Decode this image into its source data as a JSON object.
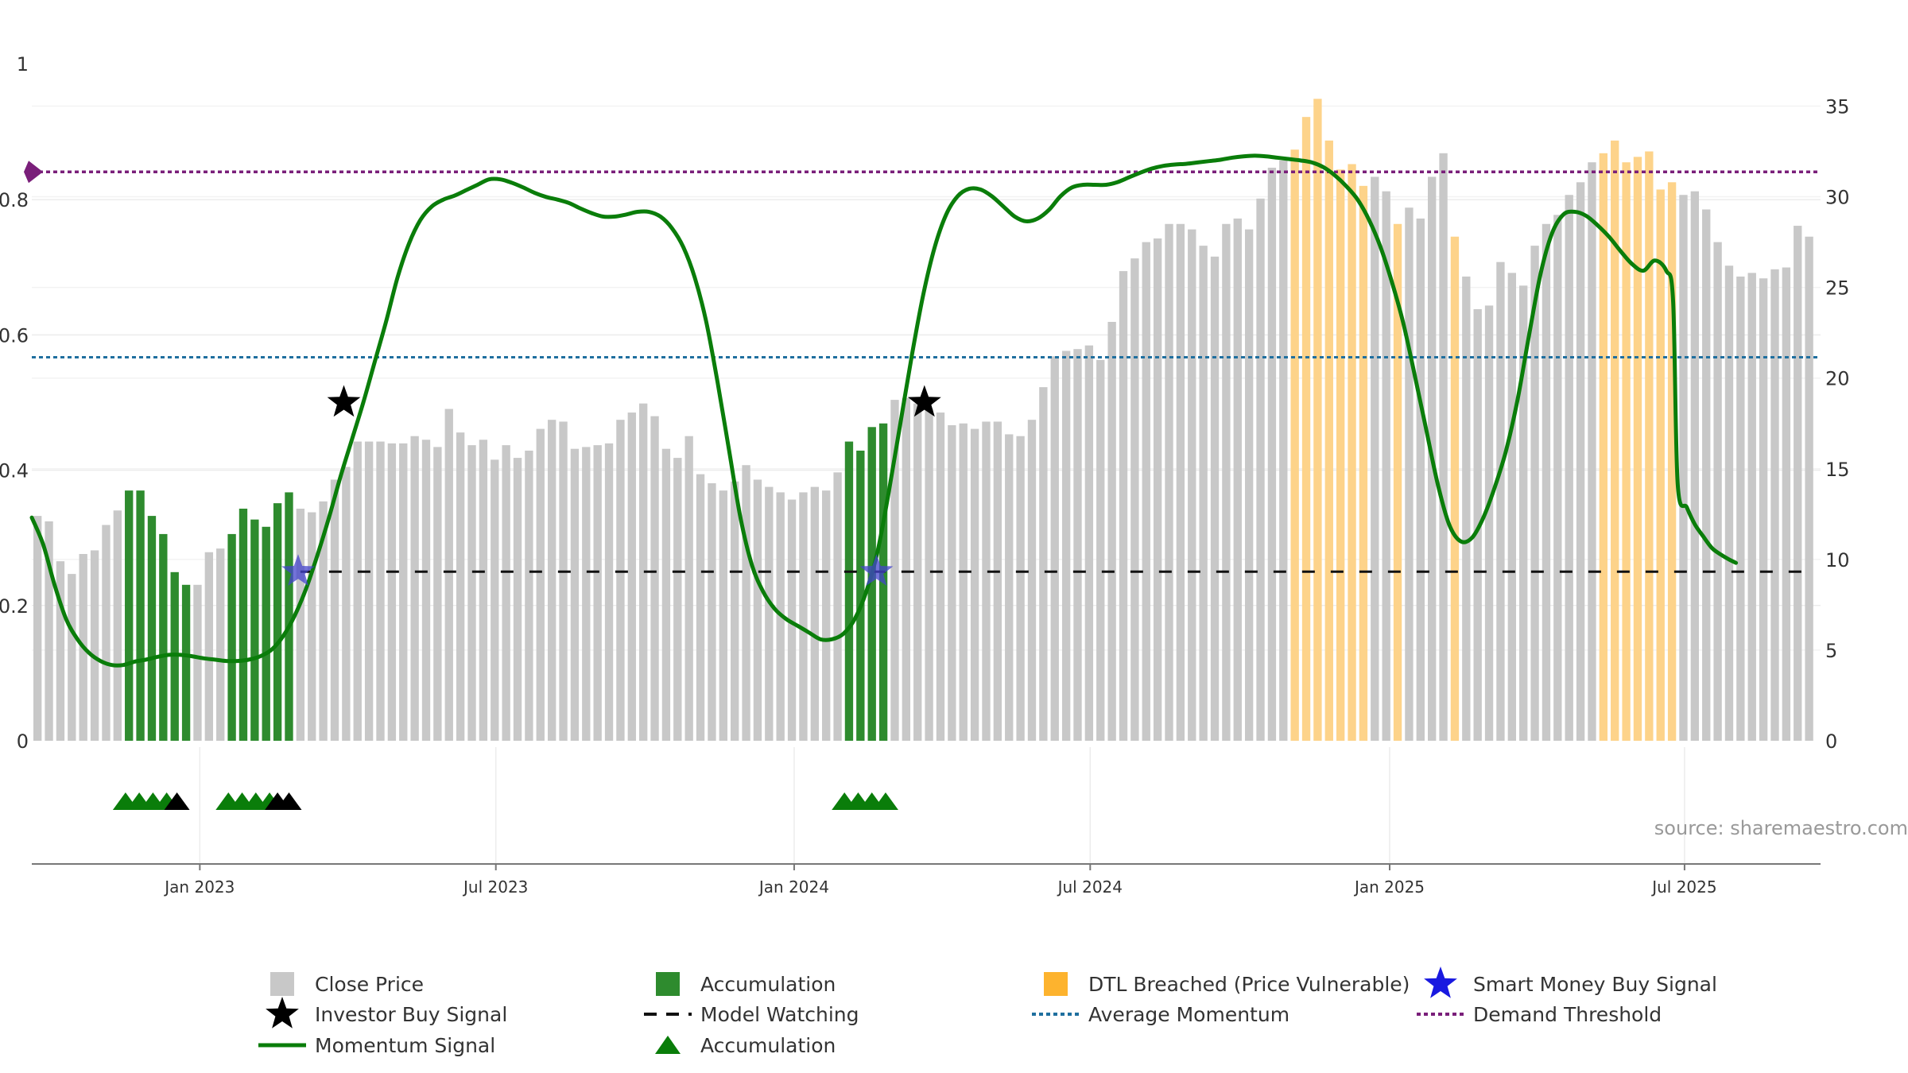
{
  "chart_data": {
    "type": "bar",
    "source_label": "source: sharemaestro.com",
    "colors": {
      "close_price": "#c8c8c8",
      "accumulation": "#2e8b2e",
      "dtl": "#fdd38a",
      "momentum": "#0a7d0a",
      "model_watching": "#111111",
      "average_momentum": "#1f6f9f",
      "demand_threshold": "#7a1f7a",
      "investor_star": "#000000",
      "smart_star": "#4444cc",
      "triangle_acc": "#0a7d0a",
      "triangle_inv": "#000000"
    },
    "left_axis": {
      "range": [
        0,
        1
      ],
      "ticks": [
        "0",
        "0.2",
        "0.4",
        "0.6",
        "0.8",
        "1"
      ]
    },
    "right_axis": {
      "range": [
        0,
        37.3
      ],
      "ticks": [
        "0",
        "5",
        "10",
        "15",
        "20",
        "25",
        "30",
        "35"
      ]
    },
    "x_axis": {
      "range_weeks": [
        0,
        156.5
      ],
      "ticks": [
        {
          "label": "Jan 2023",
          "week": 14.7
        },
        {
          "label": "Jul 2023",
          "week": 40.6
        },
        {
          "label": "Jan 2024",
          "week": 66.7
        },
        {
          "label": "Jul 2024",
          "week": 92.6
        },
        {
          "label": "Jan 2025",
          "week": 118.8
        },
        {
          "label": "Jul 2025",
          "week": 144.6
        }
      ]
    },
    "close_price_series": {
      "name": "Close Price",
      "values": [
        12.4,
        12.1,
        9.9,
        9.2,
        10.3,
        10.5,
        11.9,
        12.7,
        13.8,
        13.8,
        12.4,
        11.4,
        9.3,
        8.6,
        8.6,
        10.4,
        10.6,
        11.4,
        12.8,
        12.2,
        11.8,
        13.1,
        13.7,
        12.8,
        12.6,
        13.2,
        14.4,
        15.1,
        16.5,
        16.5,
        16.5,
        16.4,
        16.4,
        16.8,
        16.6,
        16.2,
        18.3,
        17.0,
        16.3,
        16.6,
        15.5,
        16.3,
        15.6,
        16.0,
        17.2,
        17.7,
        17.6,
        16.1,
        16.2,
        16.3,
        16.4,
        17.7,
        18.1,
        18.6,
        17.9,
        16.1,
        15.6,
        16.8,
        14.7,
        14.2,
        13.8,
        14.3,
        15.2,
        14.4,
        14.0,
        13.7,
        13.3,
        13.7,
        14.0,
        13.8,
        14.8,
        16.5,
        16.0,
        17.3,
        17.5,
        18.8,
        18.9,
        18.6,
        18.3,
        18.1,
        17.4,
        17.5,
        17.2,
        17.6,
        17.6,
        16.9,
        16.8,
        17.7,
        19.5,
        21.2,
        21.5,
        21.6,
        21.8,
        21.0,
        23.1,
        25.9,
        26.6,
        27.5,
        27.7,
        28.5,
        28.5,
        28.2,
        27.3,
        26.7,
        28.5,
        28.8,
        28.2,
        29.9,
        31.6,
        32.0,
        32.6,
        34.4,
        35.4,
        33.1,
        31.5,
        31.8,
        30.6,
        31.1,
        30.3,
        28.5,
        29.4,
        28.8,
        31.1,
        32.4,
        27.8,
        25.6,
        23.8,
        24.0,
        26.4,
        25.8,
        25.1,
        27.3,
        28.5,
        29.0,
        30.1,
        30.8,
        31.9,
        32.4,
        33.1,
        31.9,
        32.2,
        32.5,
        30.4,
        30.8,
        30.1,
        30.3,
        29.3,
        27.5,
        26.2,
        25.6,
        25.8,
        25.5,
        26.0,
        26.1,
        28.4,
        27.8
      ],
      "accumulation_weeks": [
        8,
        9,
        10,
        11,
        12,
        13,
        17,
        18,
        19,
        20,
        21,
        22,
        71,
        72,
        73,
        74
      ],
      "dtl_weeks": [
        110,
        111,
        112,
        113,
        114,
        115,
        116,
        119,
        124,
        137,
        138,
        139,
        140,
        141,
        142,
        143
      ]
    },
    "momentum_series": {
      "name": "Momentum Signal",
      "points": [
        [
          0,
          0.33
        ],
        [
          1,
          0.29
        ],
        [
          2,
          0.23
        ],
        [
          3,
          0.18
        ],
        [
          4,
          0.15
        ],
        [
          5,
          0.13
        ],
        [
          6,
          0.118
        ],
        [
          7,
          0.112
        ],
        [
          8,
          0.112
        ],
        [
          9,
          0.117
        ],
        [
          10,
          0.12
        ],
        [
          11,
          0.124
        ],
        [
          12,
          0.127
        ],
        [
          13,
          0.127
        ],
        [
          14,
          0.125
        ],
        [
          15,
          0.122
        ],
        [
          16,
          0.12
        ],
        [
          17,
          0.118
        ],
        [
          18,
          0.118
        ],
        [
          19,
          0.12
        ],
        [
          20,
          0.125
        ],
        [
          21,
          0.135
        ],
        [
          22,
          0.155
        ],
        [
          23,
          0.185
        ],
        [
          24,
          0.225
        ],
        [
          25,
          0.275
        ],
        [
          26,
          0.33
        ],
        [
          27,
          0.39
        ],
        [
          28,
          0.445
        ],
        [
          29,
          0.5
        ],
        [
          30,
          0.56
        ],
        [
          31,
          0.62
        ],
        [
          32,
          0.685
        ],
        [
          33,
          0.735
        ],
        [
          34,
          0.77
        ],
        [
          35,
          0.79
        ],
        [
          36,
          0.8
        ],
        [
          37,
          0.806
        ],
        [
          38,
          0.814
        ],
        [
          39,
          0.822
        ],
        [
          40,
          0.83
        ],
        [
          41,
          0.83
        ],
        [
          42,
          0.825
        ],
        [
          43,
          0.818
        ],
        [
          44,
          0.81
        ],
        [
          45,
          0.804
        ],
        [
          46,
          0.8
        ],
        [
          47,
          0.795
        ],
        [
          48,
          0.787
        ],
        [
          49,
          0.78
        ],
        [
          50,
          0.775
        ],
        [
          51,
          0.775
        ],
        [
          52,
          0.778
        ],
        [
          53,
          0.782
        ],
        [
          54,
          0.782
        ],
        [
          55,
          0.775
        ],
        [
          56,
          0.758
        ],
        [
          57,
          0.73
        ],
        [
          58,
          0.685
        ],
        [
          59,
          0.62
        ],
        [
          60,
          0.53
        ],
        [
          61,
          0.43
        ],
        [
          62,
          0.33
        ],
        [
          63,
          0.26
        ],
        [
          64,
          0.22
        ],
        [
          65,
          0.195
        ],
        [
          66,
          0.18
        ],
        [
          67,
          0.17
        ],
        [
          68,
          0.16
        ],
        [
          69,
          0.15
        ],
        [
          70,
          0.15
        ],
        [
          71,
          0.158
        ],
        [
          72,
          0.18
        ],
        [
          73,
          0.22
        ],
        [
          74,
          0.28
        ],
        [
          75,
          0.37
        ],
        [
          76,
          0.47
        ],
        [
          77,
          0.57
        ],
        [
          78,
          0.66
        ],
        [
          79,
          0.73
        ],
        [
          80,
          0.778
        ],
        [
          81,
          0.805
        ],
        [
          82,
          0.816
        ],
        [
          83,
          0.815
        ],
        [
          84,
          0.805
        ],
        [
          85,
          0.79
        ],
        [
          86,
          0.775
        ],
        [
          87,
          0.768
        ],
        [
          88,
          0.772
        ],
        [
          89,
          0.785
        ],
        [
          90,
          0.805
        ],
        [
          91,
          0.818
        ],
        [
          92,
          0.822
        ],
        [
          93,
          0.822
        ],
        [
          94,
          0.822
        ],
        [
          95,
          0.826
        ],
        [
          96,
          0.833
        ],
        [
          97,
          0.84
        ],
        [
          98,
          0.846
        ],
        [
          99,
          0.85
        ],
        [
          100,
          0.852
        ],
        [
          101,
          0.853
        ],
        [
          102,
          0.855
        ],
        [
          103,
          0.857
        ],
        [
          104,
          0.859
        ],
        [
          105,
          0.862
        ],
        [
          106,
          0.864
        ],
        [
          107,
          0.865
        ],
        [
          108,
          0.864
        ],
        [
          109,
          0.862
        ],
        [
          110,
          0.86
        ],
        [
          111,
          0.858
        ],
        [
          112,
          0.855
        ],
        [
          113,
          0.848
        ],
        [
          114,
          0.836
        ],
        [
          115,
          0.82
        ],
        [
          116,
          0.8
        ],
        [
          117,
          0.77
        ],
        [
          118,
          0.73
        ],
        [
          119,
          0.678
        ],
        [
          120,
          0.617
        ],
        [
          121,
          0.54
        ],
        [
          122,
          0.46
        ],
        [
          123,
          0.38
        ],
        [
          124,
          0.32
        ],
        [
          125,
          0.295
        ],
        [
          126,
          0.3
        ],
        [
          127,
          0.33
        ],
        [
          128,
          0.375
        ],
        [
          129,
          0.43
        ],
        [
          130,
          0.505
        ],
        [
          131,
          0.6
        ],
        [
          132,
          0.69
        ],
        [
          133,
          0.75
        ],
        [
          134,
          0.778
        ],
        [
          135,
          0.782
        ],
        [
          136,
          0.776
        ],
        [
          137,
          0.762
        ],
        [
          138,
          0.745
        ],
        [
          139,
          0.724
        ],
        [
          140,
          0.705
        ],
        [
          141,
          0.695
        ],
        [
          142,
          0.71
        ],
        [
          143,
          0.695
        ],
        [
          143.6,
          0.65
        ],
        [
          144,
          0.38
        ],
        [
          144.8,
          0.345
        ],
        [
          145.5,
          0.32
        ],
        [
          146.2,
          0.303
        ],
        [
          147,
          0.285
        ],
        [
          147.8,
          0.275
        ],
        [
          148.5,
          0.268
        ],
        [
          149.1,
          0.263
        ]
      ]
    },
    "reference_lines": {
      "model_watching": {
        "value": 0.25,
        "from_week": 23.5
      },
      "average_momentum": {
        "value": 0.567
      },
      "demand_threshold": {
        "value": 0.841
      }
    },
    "investor_buy_signals": [
      [
        27.3,
        0.5
      ],
      [
        78.1,
        0.5
      ]
    ],
    "smart_money_signals": [
      [
        23.3,
        0.25
      ],
      [
        73.9,
        0.25
      ]
    ],
    "triangle_markers": [
      {
        "week": 8.2,
        "kind": "accumulation"
      },
      {
        "week": 9.4,
        "kind": "accumulation"
      },
      {
        "week": 10.6,
        "kind": "accumulation"
      },
      {
        "week": 11.8,
        "kind": "accumulation"
      },
      {
        "week": 12.7,
        "kind": "investor"
      },
      {
        "week": 17.2,
        "kind": "accumulation"
      },
      {
        "week": 18.4,
        "kind": "accumulation"
      },
      {
        "week": 19.6,
        "kind": "accumulation"
      },
      {
        "week": 20.8,
        "kind": "accumulation"
      },
      {
        "week": 21.5,
        "kind": "investor"
      },
      {
        "week": 22.5,
        "kind": "investor"
      },
      {
        "week": 71.1,
        "kind": "accumulation"
      },
      {
        "week": 72.3,
        "kind": "accumulation"
      },
      {
        "week": 73.5,
        "kind": "accumulation"
      },
      {
        "week": 74.7,
        "kind": "accumulation"
      }
    ],
    "legend": [
      {
        "label": "Close Price",
        "kind": "square-gray"
      },
      {
        "label": "Accumulation",
        "kind": "square-green"
      },
      {
        "label": "DTL Breached (Price Vulnerable)",
        "kind": "square-orange"
      },
      {
        "label": "Smart Money Buy Signal",
        "kind": "star-blue"
      },
      {
        "label": "Investor Buy Signal",
        "kind": "star-black"
      },
      {
        "label": "Model Watching",
        "kind": "dash-black"
      },
      {
        "label": "Average Momentum",
        "kind": "dot-blue"
      },
      {
        "label": "Demand Threshold",
        "kind": "dot-purple"
      },
      {
        "label": "Momentum Signal",
        "kind": "line-green"
      },
      {
        "label": "Accumulation",
        "kind": "triangle-green"
      }
    ]
  }
}
